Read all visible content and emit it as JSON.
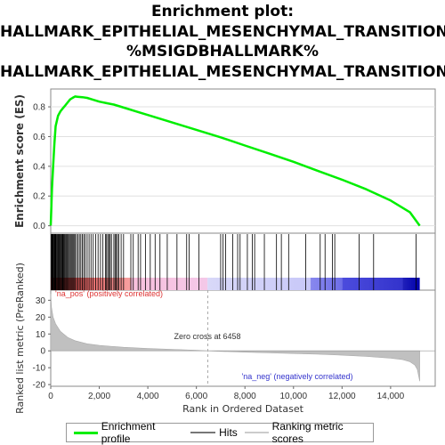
{
  "title_lines": [
    "Enrichment plot:",
    "HALLMARK_EPITHELIAL_MESENCHYMAL_TRANSITION",
    "%MSIGDBHALLMARK%",
    "HALLMARK_EPITHELIAL_MESENCHYMAL_TRANSITION"
  ],
  "colors": {
    "enrichment": "#00ee00",
    "hits": "#000000",
    "ranked": "#c0c0c0",
    "pos_label": "#dd3333",
    "neg_label": "#3333cc"
  },
  "chart_data": [
    {
      "type": "line",
      "name": "enrichment-profile",
      "ylabel": "Enrichment score (ES)",
      "xlim": [
        0,
        15600
      ],
      "ylim": [
        -0.05,
        0.92
      ],
      "yticks": [
        "0.0",
        "0.2",
        "0.4",
        "0.6",
        "0.8"
      ],
      "ytick_values": [
        0.0,
        0.2,
        0.4,
        0.6,
        0.8
      ],
      "series": [
        {
          "name": "Enrichment profile",
          "x": [
            0,
            50,
            100,
            150,
            200,
            300,
            400,
            500,
            600,
            700,
            800,
            900,
            1000,
            1100,
            1300,
            1500,
            1700,
            2000,
            2300,
            2600,
            2900,
            3200,
            3500,
            4000,
            5000,
            6000,
            7000,
            8000,
            9000,
            10000,
            11000,
            12000,
            13000,
            14000,
            14800,
            15200
          ],
          "values": [
            0.0,
            0.25,
            0.4,
            0.55,
            0.67,
            0.74,
            0.77,
            0.79,
            0.81,
            0.83,
            0.85,
            0.86,
            0.87,
            0.868,
            0.865,
            0.86,
            0.85,
            0.835,
            0.825,
            0.815,
            0.8,
            0.785,
            0.77,
            0.745,
            0.695,
            0.645,
            0.595,
            0.54,
            0.485,
            0.43,
            0.37,
            0.31,
            0.245,
            0.17,
            0.09,
            0.0
          ]
        }
      ]
    },
    {
      "type": "heatmap",
      "name": "hits-rug",
      "hits": [
        20,
        40,
        60,
        80,
        100,
        120,
        150,
        170,
        190,
        210,
        240,
        270,
        300,
        330,
        360,
        390,
        420,
        450,
        480,
        510,
        540,
        570,
        600,
        640,
        680,
        720,
        760,
        800,
        840,
        880,
        920,
        960,
        1000,
        1060,
        1120,
        1180,
        1240,
        1300,
        1360,
        1420,
        1500,
        1580,
        1660,
        1750,
        1850,
        1950,
        2050,
        2150,
        2250,
        2300,
        2350,
        2400,
        2450,
        2500,
        2600,
        2650,
        2700,
        2750,
        2800,
        2900,
        3000,
        3300,
        3400,
        3600,
        3700,
        3900,
        4100,
        4300,
        4500,
        4800,
        5200,
        5600,
        5700,
        6100,
        7000,
        7100,
        7200,
        7500,
        7700,
        7800,
        8100,
        8300,
        8400,
        8800,
        9300,
        9500,
        9800,
        10500,
        11100,
        11300,
        11600,
        11700,
        12700,
        13300,
        15050
      ]
    },
    {
      "type": "area",
      "name": "ranked-list-metric",
      "ylabel": "Ranked list metric (PreRanked)",
      "xlabel": "Rank in Ordered Dataset",
      "xlim": [
        0,
        15600
      ],
      "ylim": [
        -21,
        36
      ],
      "yticks": [
        "-20",
        "-10",
        "0",
        "10",
        "20",
        "30"
      ],
      "ytick_values": [
        -20,
        -10,
        0,
        10,
        20,
        30
      ],
      "xticks": [
        "0",
        "2,000",
        "4,000",
        "6,000",
        "8,000",
        "10,000",
        "12,000",
        "14,000"
      ],
      "xtick_values": [
        0,
        2000,
        4000,
        6000,
        8000,
        10000,
        12000,
        14000
      ],
      "x": [
        0,
        30,
        100,
        200,
        400,
        700,
        1000,
        1500,
        2000,
        3000,
        4000,
        5000,
        6000,
        6458,
        7000,
        8000,
        9000,
        10000,
        11000,
        12000,
        13000,
        14000,
        14500,
        14800,
        15000,
        15100,
        15200
      ],
      "values": [
        34,
        26,
        20,
        16,
        11.5,
        8,
        6,
        4.2,
        3.2,
        2.1,
        1.4,
        0.9,
        0.4,
        0,
        -0.3,
        -0.8,
        -1.2,
        -1.6,
        -2.0,
        -2.6,
        -3.3,
        -4.3,
        -5.2,
        -6.5,
        -8.5,
        -11,
        -18
      ],
      "annotations": [
        {
          "text": "'na_pos' (positively correlated)",
          "x": 0
        },
        {
          "text": "Zero cross at 6458",
          "x": 6458
        },
        {
          "text": "'na_neg' (negatively correlated)",
          "x": 12300
        }
      ]
    }
  ],
  "legend": [
    {
      "label": "Enrichment profile"
    },
    {
      "label": "Hits"
    },
    {
      "label": "Ranking metric scores"
    }
  ]
}
